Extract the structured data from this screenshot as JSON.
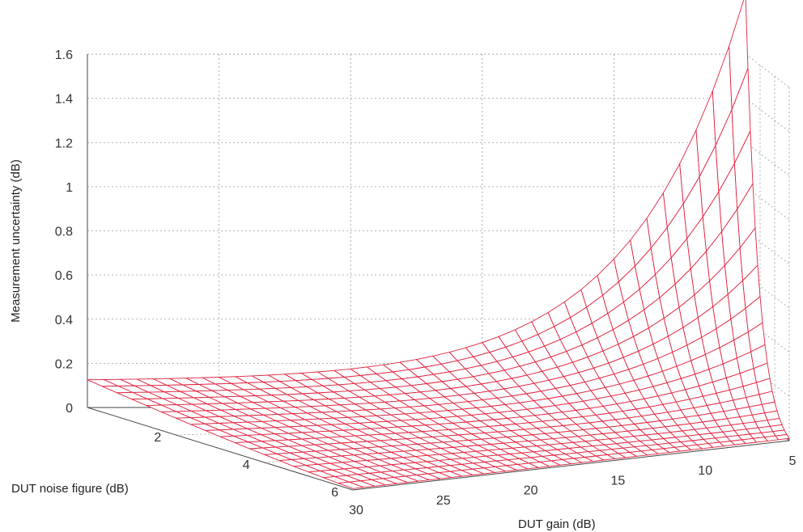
{
  "chart_data": {
    "type": "surface",
    "title": "",
    "xlabel": "DUT gain (dB)",
    "ylabel": "DUT noise figure (dB)",
    "zlabel": "Measurement uncertainty (dB)",
    "x_ticks": [
      "30",
      "25",
      "20",
      "15",
      "10",
      "5"
    ],
    "y_ticks": [
      "2",
      "4",
      "6"
    ],
    "z_ticks": [
      "0",
      "0.2",
      "0.4",
      "0.6",
      "0.8",
      "1",
      "1.2",
      "1.4",
      "1.6"
    ],
    "xlim": [
      30,
      5
    ],
    "ylim": [
      0,
      6
    ],
    "zlim": [
      0,
      1.6
    ],
    "grid": true,
    "mesh_color": "#e0223d",
    "gain_samples": [
      30,
      25,
      20,
      15,
      10,
      5
    ],
    "noise_figure_samples": [
      0,
      2,
      4,
      6
    ],
    "uncertainty_at_nf0": [
      0.12,
      0.13,
      0.18,
      0.32,
      0.75,
      1.75
    ],
    "uncertainty_at_nf6": [
      0.01,
      0.01,
      0.02,
      0.05,
      0.14,
      0.43
    ]
  },
  "axis_text": {
    "z_label": "Measurement uncertainty (dB)",
    "y_label": "DUT noise figure (dB)",
    "x_label": "DUT gain (dB)"
  }
}
